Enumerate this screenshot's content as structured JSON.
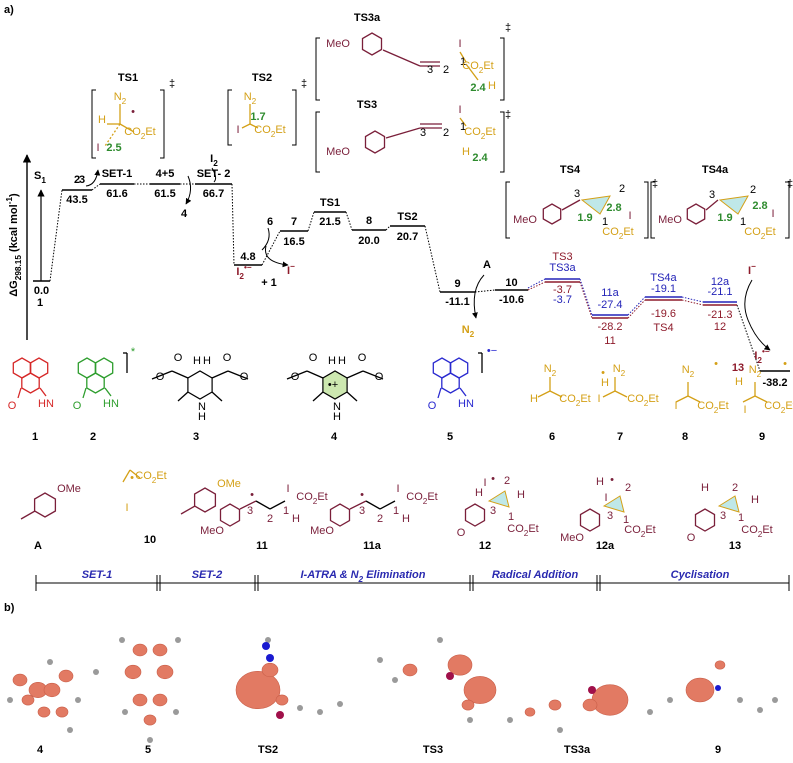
{
  "panels": [
    "a)",
    "b)"
  ],
  "axis_label": {
    "t": "ΔG",
    "sub": "298.15",
    "t2": " (kcal mol",
    "sup": "-1",
    "t3": ")"
  },
  "profile": {
    "black": [
      {
        "name": {
          "t": "S",
          "sub": "1"
        },
        "value": 0,
        "value_label": "0.0"
      },
      {
        "name": "2",
        "value": 43.5
      },
      {
        "name": "SET-1",
        "value": 61.6
      },
      {
        "name": "4+5",
        "value": 61.5
      },
      {
        "name": "SET- 2",
        "value": 66.7
      },
      {
        "value": 4.8
      },
      {
        "name": "7",
        "value": 16.5
      },
      {
        "name": "TS1",
        "value": 21.5
      },
      {
        "name": "8",
        "value": 20,
        "value_label": "20.0"
      },
      {
        "name": "TS2",
        "value": 20.7
      },
      {
        "name": "9",
        "value": -11.1
      },
      {
        "name": "10",
        "value": -10.6
      },
      {
        "value": -38.2
      }
    ],
    "red": [
      {
        "name": "TS3",
        "value": -3.7
      },
      {
        "name": "11",
        "value": -28.2
      },
      {
        "name": "TS4",
        "value": -19.6
      },
      {
        "name": "12",
        "value": -21.3
      }
    ],
    "blue": [
      {
        "name": "TS3a",
        "value": -3.7
      },
      {
        "name": "11a",
        "value": -27.4
      },
      {
        "name": "TS4a",
        "value": -19.1
      },
      {
        "name": "12a",
        "value": -21.1
      }
    ]
  },
  "profile_notes": [
    "1",
    "3",
    "4",
    {
      "t": "I",
      "sub": "2"
    },
    "6",
    {
      "t": "I",
      "sub": "2",
      "sup": "•−"
    },
    "+ 1",
    {
      "t": "I",
      "sup": "−"
    },
    "A",
    {
      "t": "N",
      "sub": "2"
    },
    {
      "t": "I",
      "sup": "−"
    },
    {
      "t": "I",
      "sub": "2",
      "sup": "•−"
    },
    "13"
  ],
  "ts_boxes": [
    {
      "name": "TS1",
      "atoms": [
        {
          "t": "N",
          "sub": "2"
        },
        "H",
        "•",
        "I",
        "2.5",
        {
          "t": "CO",
          "sub": "2",
          "t2": "Et"
        }
      ],
      "mark": "‡"
    },
    {
      "name": "TS2",
      "atoms": [
        {
          "t": "N",
          "sub": "2"
        },
        "1.7",
        "I",
        {
          "t": "CO",
          "sub": "2",
          "t2": "Et"
        }
      ],
      "mark": "‡"
    },
    {
      "name": "TS3a",
      "atoms": [
        "MeO",
        "3",
        "2",
        "1",
        "I",
        {
          "t": "CO",
          "sub": "2",
          "t2": "Et"
        },
        "2.4",
        "H"
      ],
      "mark": "‡"
    },
    {
      "name": "TS3",
      "atoms": [
        "MeO",
        "3",
        "2",
        "1",
        "I",
        {
          "t": "CO",
          "sub": "2",
          "t2": "Et"
        },
        "2.4",
        "H"
      ],
      "mark": "‡"
    },
    {
      "name": "TS4",
      "atoms": [
        "MeO",
        "3",
        "2",
        "2.8",
        "1.9",
        "1",
        "I",
        {
          "t": "CO",
          "sub": "2",
          "t2": "Et"
        }
      ],
      "mark": "‡"
    },
    {
      "name": "TS4a",
      "atoms": [
        "MeO",
        "3",
        "2",
        "2.8",
        "1.9",
        "1",
        "I",
        {
          "t": "CO",
          "sub": "2",
          "t2": "Et"
        }
      ],
      "mark": "‡"
    }
  ],
  "structures": [
    {
      "id": "1",
      "atoms": [
        "O",
        "HN"
      ]
    },
    {
      "id": "2",
      "atoms": [
        "O",
        "HN",
        "*"
      ]
    },
    {
      "id": "3",
      "atoms": [
        "O",
        "O",
        "O",
        "O",
        "H",
        "H",
        "N",
        "H"
      ]
    },
    {
      "id": "4",
      "atoms": [
        "O",
        "O",
        "O",
        "O",
        "H",
        "H",
        "N",
        "H",
        "•+"
      ]
    },
    {
      "id": "5",
      "atoms": [
        "O",
        "HN",
        "•−"
      ]
    },
    {
      "id": "6",
      "atoms": [
        {
          "t": "N",
          "sub": "2"
        },
        {
          "t": "CO",
          "sub": "2",
          "t2": "Et"
        },
        "H"
      ]
    },
    {
      "id": "7",
      "atoms": [
        "I",
        {
          "t": "N",
          "sub": "2"
        },
        "H",
        {
          "t": "CO",
          "sub": "2",
          "t2": "Et"
        },
        "•"
      ]
    },
    {
      "id": "8",
      "atoms": [
        {
          "t": "N",
          "sub": "2"
        },
        "I",
        {
          "t": "CO",
          "sub": "2",
          "t2": "Et"
        },
        "•"
      ]
    },
    {
      "id": "9",
      "atoms": [
        "H",
        {
          "t": "N",
          "sub": "2"
        },
        "I",
        {
          "t": "CO",
          "sub": "2",
          "t2": "Et"
        },
        "•"
      ]
    },
    {
      "id": "A",
      "atoms": [
        "OMe"
      ]
    },
    {
      "id": "10",
      "atoms": [
        {
          "t": "CO",
          "sub": "2",
          "t2": "Et"
        },
        "I",
        "OMe",
        "•"
      ]
    },
    {
      "id": "11",
      "atoms": [
        "MeO",
        "•",
        "3",
        "2",
        "1",
        "I",
        {
          "t": "CO",
          "sub": "2",
          "t2": "Et"
        },
        "H"
      ]
    },
    {
      "id": "11a",
      "atoms": [
        "MeO",
        "•",
        "3",
        "2",
        "1",
        "I",
        {
          "t": "CO",
          "sub": "2",
          "t2": "Et"
        },
        "H"
      ]
    },
    {
      "id": "12",
      "atoms": [
        "I",
        "•",
        "2",
        "H",
        "3",
        "1",
        "H",
        {
          "t": "CO",
          "sub": "2",
          "t2": "Et"
        },
        "O"
      ]
    },
    {
      "id": "12a",
      "atoms": [
        "H",
        "I",
        "•",
        "2",
        "3",
        "1",
        {
          "t": "CO",
          "sub": "2",
          "t2": "Et"
        },
        "MeO"
      ]
    },
    {
      "id": "13",
      "atoms": [
        "H",
        "2",
        "H",
        "3",
        "1",
        {
          "t": "CO",
          "sub": "2",
          "t2": "Et"
        },
        "O"
      ]
    }
  ],
  "stages": [
    "SET-1",
    "SET-2",
    {
      "t": "I-ATRA & N",
      "sub": "2",
      "t2": " Elimination"
    },
    "Radical Addition",
    "Cyclisation"
  ],
  "orbitals": [
    "4",
    "5",
    "TS2",
    "TS3",
    "TS3a",
    "9"
  ]
}
